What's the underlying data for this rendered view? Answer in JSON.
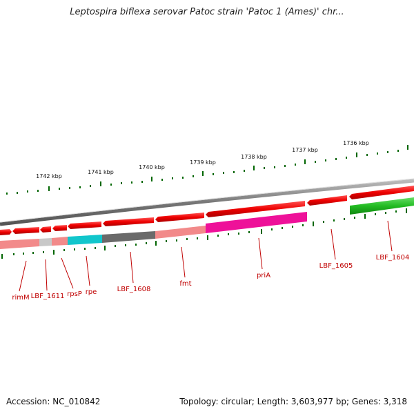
{
  "title": "Leptospira biflexa serovar Patoc strain 'Patoc 1 (Ames)' chr...",
  "footer": {
    "accession": "Accession: NC_010842",
    "summary": "Topology: circular; Length: 3,603,977 bp; Genes: 3,318"
  },
  "scale_ticks": [
    "1742 kbp",
    "1741 kbp",
    "1740 kbp",
    "1739 kbp",
    "1738 kbp",
    "1737 kbp",
    "1736 kbp"
  ],
  "gene_labels": [
    "rimM",
    "LBF_1611",
    "rpsP",
    "rpe",
    "LBF_1608",
    "fmt",
    "priA",
    "LBF_1605",
    "LBF_1604"
  ],
  "colors": {
    "backbone": "#888888",
    "forward_gene": "#ee0000",
    "reverse_gene": "#22bb22",
    "label": "#c00000",
    "tick": "#006600"
  }
}
